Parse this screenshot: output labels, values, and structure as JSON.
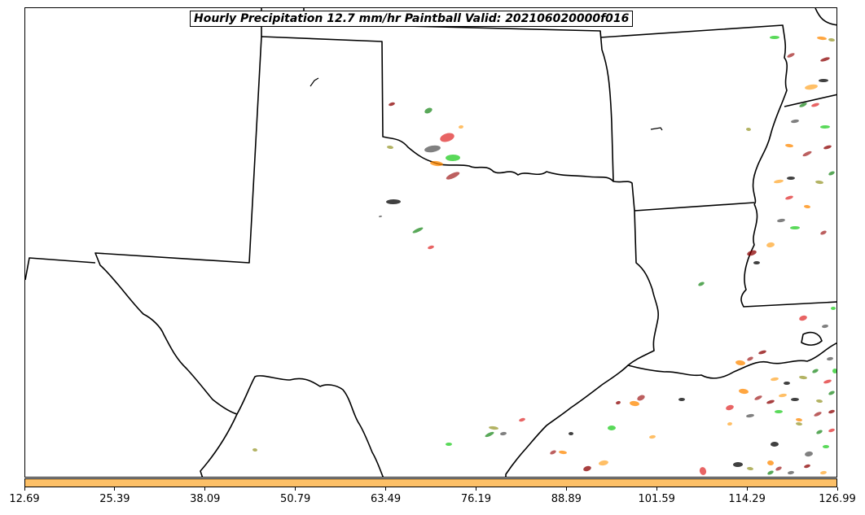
{
  "title": "Hourly Precipitation 12.7 mm/hr Paintball Valid: 202106020000f016",
  "colorbar": {
    "color": "#fdc067",
    "tick_labels": [
      "12.69",
      "25.39",
      "38.09",
      "50.79",
      "63.49",
      "76.19",
      "88.89",
      "101.59",
      "114.29",
      "126.99"
    ]
  },
  "map": {
    "border_color": "#000000",
    "paintball_colors": [
      "#e03030",
      "#ff8800",
      "#ffaa33",
      "#228b22",
      "#22cc22",
      "#8b0000",
      "#9a9a30",
      "#555555",
      "#a52a2a",
      "#000000"
    ]
  }
}
